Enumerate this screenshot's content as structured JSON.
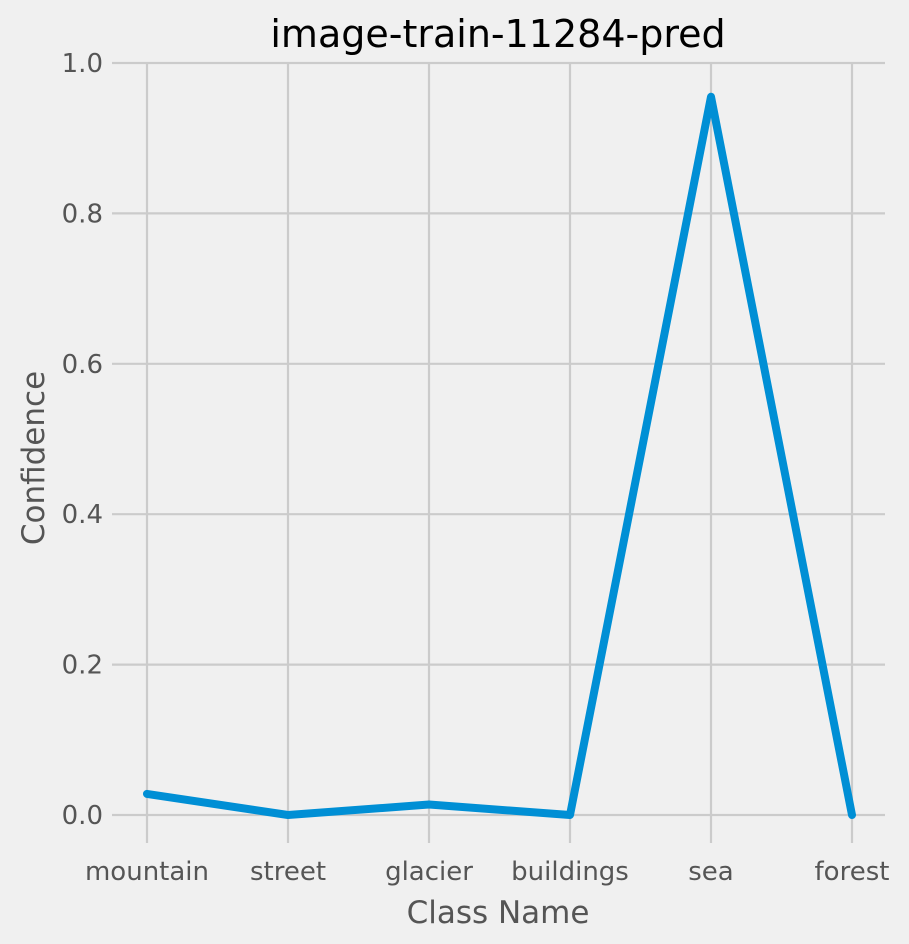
{
  "chart_data": {
    "type": "line",
    "title": "image-train-11284-pred",
    "xlabel": "Class Name",
    "ylabel": "Confidence",
    "categories": [
      "mountain",
      "street",
      "glacier",
      "buildings",
      "sea",
      "forest"
    ],
    "series": [
      {
        "values": [
          0.028,
          0.0,
          0.014,
          0.0,
          0.955,
          0.0
        ]
      }
    ],
    "ylim": [
      0.0,
      1.0
    ],
    "yticks": [
      "0.0",
      "0.2",
      "0.4",
      "0.6",
      "0.8",
      "1.0"
    ],
    "grid": true,
    "colors": {
      "line": "#008fd5",
      "background": "#f0f0f0",
      "grid": "#cbcbcb",
      "text": "#555555",
      "title": "#000000"
    }
  }
}
